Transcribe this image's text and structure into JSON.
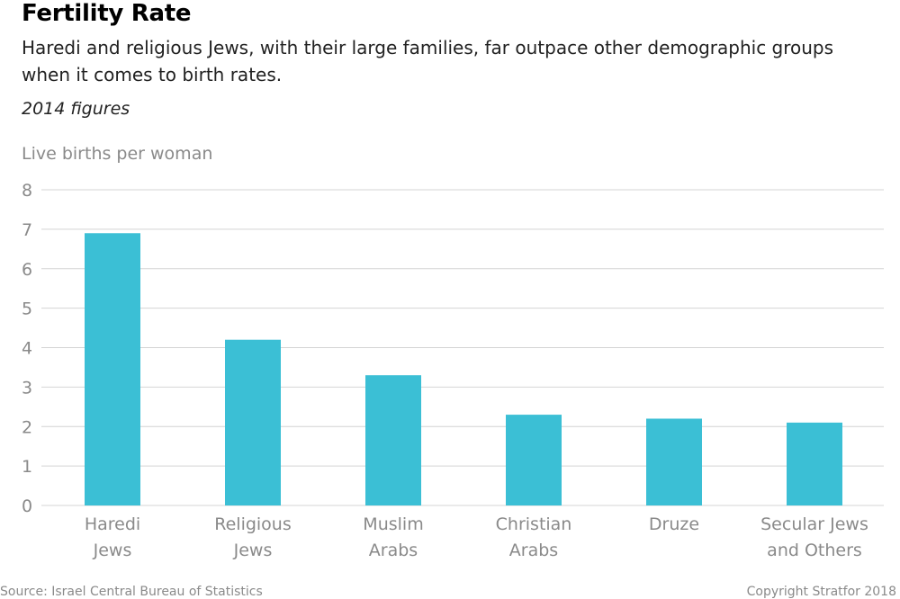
{
  "header": {
    "title": "Fertility Rate",
    "subtitle": "Haredi and religious Jews, with their large families, far outpace other demographic groups when it comes to birth rates.",
    "note": "2014 figures"
  },
  "footer": {
    "source": "Source: Israel Central Bureau of Statistics",
    "copyright": "Copyright Stratfor 2018"
  },
  "colors": {
    "bar": "#3bbfd5",
    "grid": "#d4d4d4",
    "tick_text": "#8a8a8a"
  },
  "chart_data": {
    "type": "bar",
    "title": "Fertility Rate",
    "ylabel": "Live births per woman",
    "xlabel": "",
    "ylim": [
      0,
      8
    ],
    "yticks": [
      0,
      1,
      2,
      3,
      4,
      5,
      6,
      7,
      8
    ],
    "grid": true,
    "legend": "none",
    "categories": [
      [
        "Haredi",
        "Jews"
      ],
      [
        "Religious",
        "Jews"
      ],
      [
        "Muslim",
        "Arabs"
      ],
      [
        "Christian",
        "Arabs"
      ],
      [
        "Druze"
      ],
      [
        "Secular Jews",
        "and Others"
      ]
    ],
    "values": [
      6.9,
      4.2,
      3.3,
      2.3,
      2.2,
      2.1
    ]
  }
}
